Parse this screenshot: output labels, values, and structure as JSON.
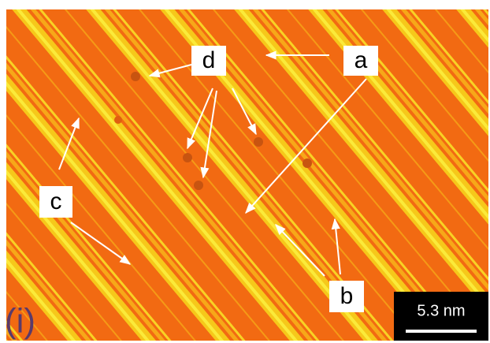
{
  "annotations": {
    "a": "a",
    "b": "b",
    "c": "c",
    "d": "d"
  },
  "panel_label": "(i)",
  "scale_bar": "5.3 nm"
}
